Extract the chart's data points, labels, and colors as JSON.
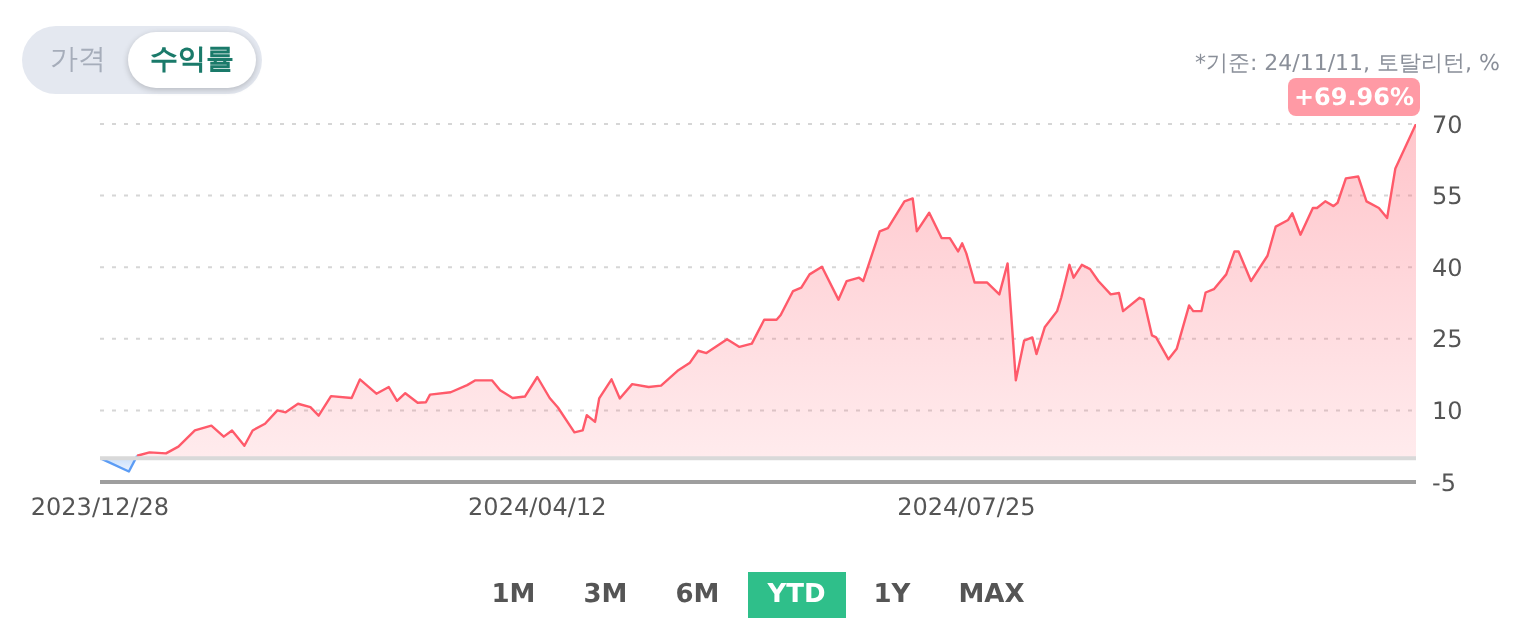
{
  "chart_data": {
    "type": "area",
    "subtitle": "*기준: 24/11/11, 토탈리턴, %",
    "annotations": [
      "가격",
      "수익률",
      "1M",
      "3M",
      "6M",
      "YTD",
      "1Y",
      "MAX",
      {
        "text": "+69.96%",
        "x": "2024-11-11",
        "y": 70
      }
    ],
    "series": [
      {
        "color": "#5b9cf5",
        "x": [
          "2023-12-28",
          "2024-01-04",
          "2024-01-06"
        ],
        "values": [
          0,
          -2.8,
          0.5
        ]
      },
      {
        "color": "#ff5a6a",
        "x": [
          "2024-01-06",
          "2024-01-09",
          "2024-01-13",
          "2024-01-16",
          "2024-01-20",
          "2024-01-24",
          "2024-01-27",
          "2024-01-29",
          "2024-02-01",
          "2024-02-03",
          "2024-02-06",
          "2024-02-09",
          "2024-02-11",
          "2024-02-14",
          "2024-02-17",
          "2024-02-19",
          "2024-02-22",
          "2024-02-27",
          "2024-02-29",
          "2024-03-04",
          "2024-03-07",
          "2024-03-09",
          "2024-03-11",
          "2024-03-14",
          "2024-03-16",
          "2024-03-17",
          "2024-03-22",
          "2024-03-26",
          "2024-03-28",
          "2024-04-01",
          "2024-04-03",
          "2024-04-06",
          "2024-04-09",
          "2024-04-12",
          "2024-04-15",
          "2024-04-17",
          "2024-04-21",
          "2024-04-23",
          "2024-04-24",
          "2024-04-26",
          "2024-04-27",
          "2024-04-30",
          "2024-05-02",
          "2024-05-05",
          "2024-05-09",
          "2024-05-12",
          "2024-05-16",
          "2024-05-19",
          "2024-05-21",
          "2024-05-23",
          "2024-05-28",
          "2024-05-31",
          "2024-06-03",
          "2024-06-06",
          "2024-06-09",
          "2024-06-10",
          "2024-06-13",
          "2024-06-15",
          "2024-06-17",
          "2024-06-20",
          "2024-06-24",
          "2024-06-26",
          "2024-06-29",
          "2024-06-30",
          "2024-07-04",
          "2024-07-06",
          "2024-07-10",
          "2024-07-12",
          "2024-07-13",
          "2024-07-16",
          "2024-07-19",
          "2024-07-21",
          "2024-07-23",
          "2024-07-24",
          "2024-07-25",
          "2024-07-27",
          "2024-07-30",
          "2024-08-02",
          "2024-08-04",
          "2024-08-06",
          "2024-08-08",
          "2024-08-10",
          "2024-08-11",
          "2024-08-13",
          "2024-08-16",
          "2024-08-17",
          "2024-08-19",
          "2024-08-20",
          "2024-08-22",
          "2024-08-24",
          "2024-08-26",
          "2024-08-29",
          "2024-08-31",
          "2024-09-01",
          "2024-09-05",
          "2024-09-06",
          "2024-09-08",
          "2024-09-09",
          "2024-09-12",
          "2024-09-14",
          "2024-09-17",
          "2024-09-18",
          "2024-09-20",
          "2024-09-21",
          "2024-09-23",
          "2024-09-26",
          "2024-09-28",
          "2024-09-29",
          "2024-10-02",
          "2024-10-06",
          "2024-10-08",
          "2024-10-11",
          "2024-10-12",
          "2024-10-14",
          "2024-10-17",
          "2024-10-18",
          "2024-10-20",
          "2024-10-22",
          "2024-10-23",
          "2024-10-25",
          "2024-10-28",
          "2024-10-30",
          "2024-11-02",
          "2024-11-04",
          "2024-11-06",
          "2024-11-11"
        ],
        "values": [
          0.5,
          1.2,
          1,
          2.4,
          5.8,
          6.8,
          4.5,
          5.8,
          2.6,
          5.8,
          7.2,
          10,
          9.6,
          11.4,
          10.7,
          8.9,
          13,
          12.6,
          16.5,
          13.5,
          14.9,
          12,
          13.6,
          11.6,
          11.7,
          13.3,
          13.8,
          15.3,
          16.3,
          16.3,
          14.2,
          12.6,
          12.9,
          17,
          12.6,
          10.6,
          5.4,
          5.8,
          9,
          7.6,
          12.5,
          16.5,
          12.5,
          15.5,
          14.9,
          15.2,
          18.3,
          20,
          22.5,
          22,
          24.9,
          23.3,
          24,
          29,
          29,
          30,
          35,
          35.7,
          38.5,
          40.1,
          33.2,
          37.1,
          37.8,
          37.1,
          47.5,
          48.2,
          53.8,
          54.4,
          47.5,
          51.4,
          46.1,
          46.1,
          43.3,
          45,
          42.9,
          36.8,
          36.8,
          34.3,
          40.8,
          16.3,
          24.6,
          25.3,
          21.8,
          27.4,
          30.8,
          33.6,
          40.5,
          37.8,
          40.5,
          39.6,
          37.1,
          34.3,
          34.6,
          30.8,
          33.6,
          33.2,
          25.7,
          25.3,
          20.7,
          22.9,
          32,
          30.8,
          30.8,
          34.7,
          35.4,
          38.5,
          43.3,
          43.3,
          37.1,
          42.4,
          48.5,
          49.9,
          51.3,
          46.8,
          52.4,
          52.4,
          53.8,
          52.8,
          53.5,
          58.6,
          59,
          53.8,
          52.4,
          50.3,
          60.7,
          70
        ]
      }
    ],
    "xlim": [
      "2023-12-28",
      "2024-11-11"
    ],
    "xticks": [
      {
        "value": "2023-12-28",
        "label": "2023/12/28"
      },
      {
        "value": "2024-04-12",
        "label": "2024/04/12"
      },
      {
        "value": "2024-07-25",
        "label": "2024/07/25"
      }
    ],
    "ylim": [
      -5,
      70
    ],
    "yticks": [
      -5,
      10,
      25,
      40,
      55,
      70
    ],
    "ref_lines": [
      {
        "axis": "y",
        "value": 0,
        "color": "#d9d9d9"
      }
    ],
    "grid": "y",
    "legend": false,
    "marker": "none",
    "line_style": "solid"
  }
}
